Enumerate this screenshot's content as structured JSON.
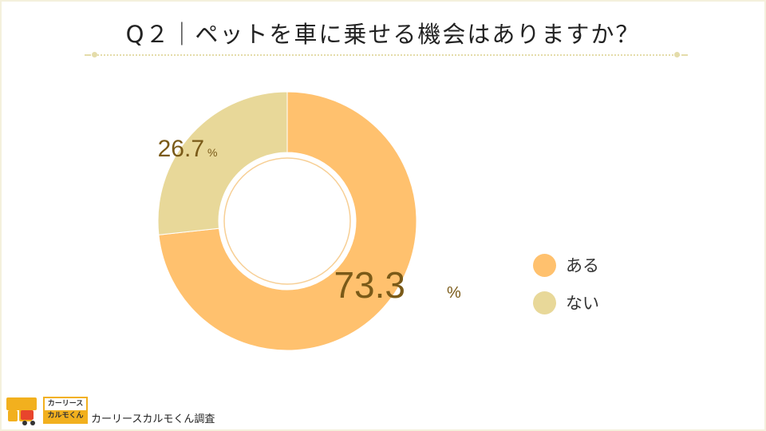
{
  "title": "Q２｜ペットを車に乗せる機会はありますか？",
  "chart_data": {
    "type": "pie",
    "style": "donut",
    "title": "Q２｜ペットを車に乗せる機会はありますか？",
    "categories": [
      "ある",
      "ない"
    ],
    "values": [
      73.3,
      26.7
    ],
    "unit": "%",
    "labels": [
      "73.3",
      "26.7"
    ],
    "label_unit": "%",
    "colors": [
      "#ffc16e",
      "#e8d899"
    ],
    "legend_position": "right"
  },
  "legend": {
    "items": [
      {
        "label": "ある",
        "color": "#ffc16e"
      },
      {
        "label": "ない",
        "color": "#e8d899"
      }
    ]
  },
  "footer": {
    "logo_top": "カーリース",
    "logo_bottom": "カルモくん",
    "source": "カーリースカルモくん調査"
  }
}
